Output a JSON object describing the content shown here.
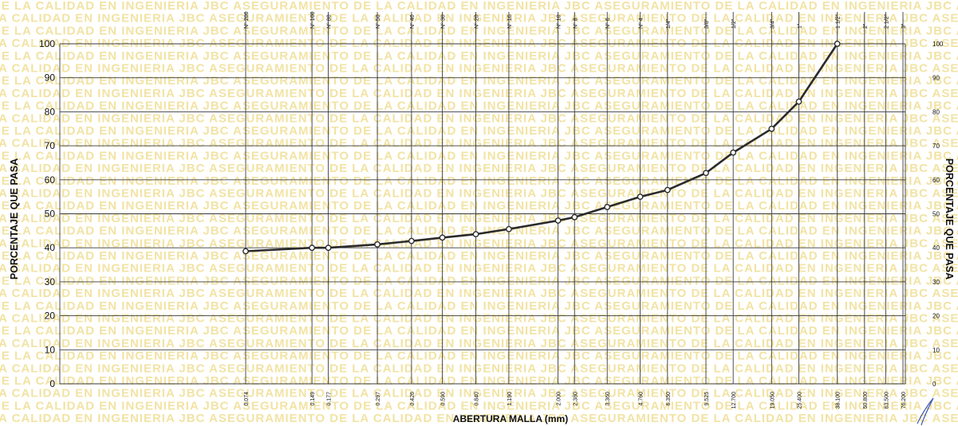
{
  "chart_data": {
    "type": "line",
    "title": "",
    "xlabel": "ABERTURA MALLA (mm)",
    "ylabel_left": "PORCENTAJE QUE PASA",
    "ylabel_right": "PORCENTAJE QUE PASA",
    "x_scale": "log",
    "ylim": [
      0,
      100
    ],
    "grid": true,
    "legend": "none",
    "y_ticks_left": [
      "0",
      "10",
      "20",
      "30",
      "40",
      "50",
      "60",
      "70",
      "80",
      "90",
      "100"
    ],
    "y_ticks_right": [
      "0",
      "10",
      "20",
      "30",
      "40",
      "50",
      "60",
      "70",
      "80",
      "90",
      "100"
    ],
    "sieves": [
      {
        "size": 0.074,
        "size_label": "0.074",
        "name": "N° 200"
      },
      {
        "size": 0.149,
        "size_label": "0.149",
        "name": "N° 100"
      },
      {
        "size": 0.177,
        "size_label": "0.177",
        "name": "N° 80"
      },
      {
        "size": 0.297,
        "size_label": "0.297",
        "name": "N° 50"
      },
      {
        "size": 0.426,
        "size_label": "0.426",
        "name": "N° 40"
      },
      {
        "size": 0.59,
        "size_label": "0.590",
        "name": "N° 30"
      },
      {
        "size": 0.84,
        "size_label": "0.840",
        "name": "N° 20"
      },
      {
        "size": 1.19,
        "size_label": "1.190",
        "name": "N° 16"
      },
      {
        "size": 2.0,
        "size_label": "2.000",
        "name": "N° 10"
      },
      {
        "size": 2.38,
        "size_label": "2.380",
        "name": "N° 8"
      },
      {
        "size": 3.36,
        "size_label": "3.360",
        "name": "N° 6"
      },
      {
        "size": 4.76,
        "size_label": "4.760",
        "name": "N° 4"
      },
      {
        "size": 6.35,
        "size_label": "6.350",
        "name": "1/4\""
      },
      {
        "size": 9.525,
        "size_label": "9.525",
        "name": "3/8\""
      },
      {
        "size": 12.7,
        "size_label": "12.700",
        "name": "1/2\""
      },
      {
        "size": 19.05,
        "size_label": "19.050",
        "name": "3/4\""
      },
      {
        "size": 25.4,
        "size_label": "25.400",
        "name": "1\""
      },
      {
        "size": 38.1,
        "size_label": "38.100",
        "name": "1 1/2\""
      },
      {
        "size": 50.8,
        "size_label": "50.800",
        "name": "2\""
      },
      {
        "size": 63.5,
        "size_label": "63.500",
        "name": "2 1/2\""
      },
      {
        "size": 76.2,
        "size_label": "76.200",
        "name": "3\""
      }
    ],
    "series": [
      {
        "x": [
          0.074,
          0.149,
          0.177,
          0.297,
          0.426,
          0.59,
          0.84,
          1.19,
          2.0,
          2.38,
          3.36,
          4.76,
          6.35,
          9.525,
          12.7,
          19.05,
          25.4,
          38.1
        ],
        "y": [
          39,
          40,
          40,
          41,
          42,
          43,
          44,
          45.5,
          48,
          49,
          52,
          55,
          57,
          62,
          68,
          75,
          83,
          100
        ]
      }
    ],
    "colors": {
      "line": "#2b2b2b",
      "grid": "#3a3a3a",
      "watermark": "#f2e3a4"
    }
  }
}
